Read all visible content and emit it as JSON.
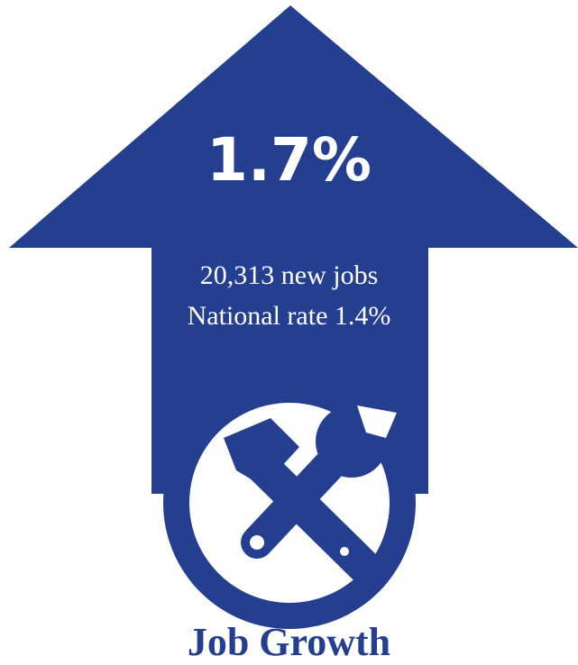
{
  "colors": {
    "primary": "#243f8f",
    "background": "#ffffff"
  },
  "graphic": {
    "shape": "up-arrow",
    "icon": "hammer-wrench-icon"
  },
  "stat": {
    "value": "1.7%",
    "new_jobs": "20,313 new jobs",
    "national_rate": "National rate 1.4%"
  },
  "caption": "Job Growth"
}
